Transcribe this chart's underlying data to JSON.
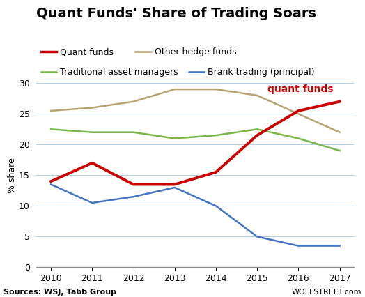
{
  "title": "Quant Funds' Share of Trading Soars",
  "years": [
    2010,
    2011,
    2012,
    2013,
    2014,
    2015,
    2016,
    2017
  ],
  "quant_funds": [
    14.0,
    17.0,
    13.5,
    13.5,
    15.5,
    21.5,
    25.5,
    27.0
  ],
  "other_hedge": [
    25.5,
    26.0,
    27.0,
    29.0,
    29.0,
    28.0,
    25.0,
    22.0
  ],
  "traditional": [
    22.5,
    22.0,
    22.0,
    21.0,
    21.5,
    22.5,
    21.0,
    19.0
  ],
  "bank_trading": [
    13.5,
    10.5,
    11.5,
    13.0,
    10.0,
    5.0,
    3.5,
    3.5
  ],
  "quant_color": "#cc0000",
  "other_hedge_color": "#b5a472",
  "traditional_color": "#7ab648",
  "bank_trading_color": "#4472c4",
  "ylabel": "% share",
  "ylim": [
    0,
    30
  ],
  "yticks": [
    0,
    5,
    10,
    15,
    20,
    25,
    30
  ],
  "source_left": "Sources: WSJ, Tabb Group",
  "source_right": "WOLFSTREET.com",
  "annotation_text": "quant funds",
  "background_color": "#ffffff",
  "grid_color": "#b0cfe8",
  "title_fontsize": 14,
  "axis_fontsize": 9,
  "legend_fontsize": 9,
  "annotation_fontsize": 10,
  "source_fontsize": 8
}
